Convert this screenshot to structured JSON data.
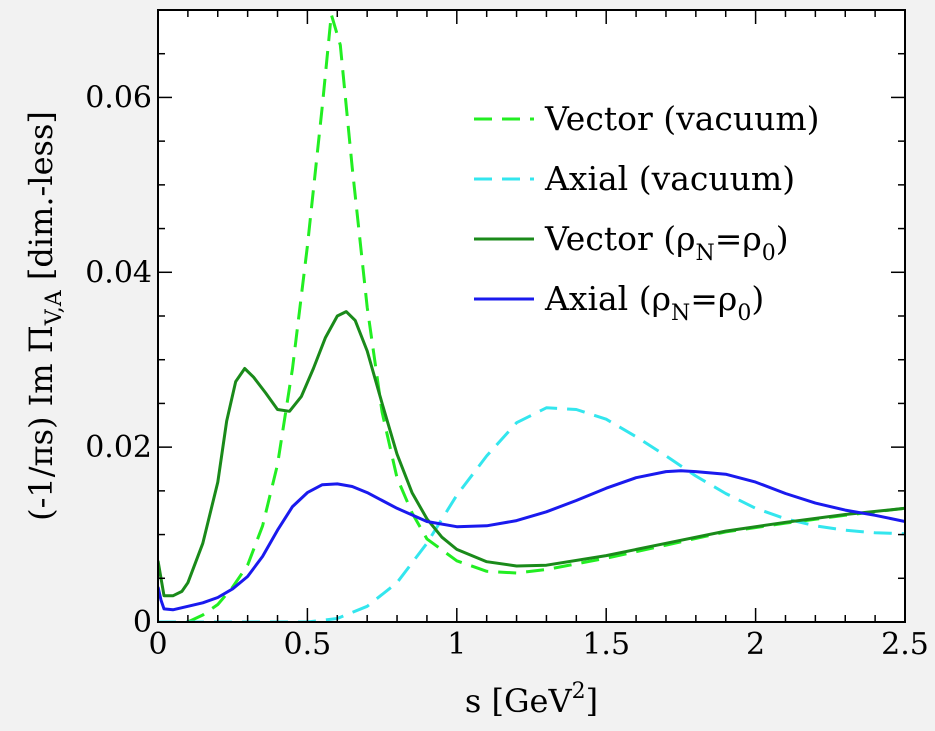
{
  "chart_data": {
    "type": "line",
    "xlabel": {
      "text": "s [GeV",
      "sup": "2",
      "close": "]"
    },
    "ylabel": {
      "text": "(-1/πs) Im Π",
      "sub": "V,A",
      "unit": " [dim.-less]"
    },
    "xlim": [
      0,
      2.5
    ],
    "ylim": [
      0,
      0.07
    ],
    "xticks": [
      {
        "value": 0,
        "label": "0"
      },
      {
        "value": 0.5,
        "label": "0.5"
      },
      {
        "value": 1,
        "label": "1"
      },
      {
        "value": 1.5,
        "label": "1.5"
      },
      {
        "value": 2,
        "label": "2"
      },
      {
        "value": 2.5,
        "label": "2.5"
      }
    ],
    "yticks": [
      {
        "value": 0,
        "label": "0"
      },
      {
        "value": 0.02,
        "label": "0.02"
      },
      {
        "value": 0.04,
        "label": "0.04"
      },
      {
        "value": 0.06,
        "label": "0.06"
      }
    ],
    "grid": false,
    "legend_position": "top-right",
    "series": [
      {
        "key": "vector-vacuum",
        "legend": {
          "text": "Vector (vacuum)"
        },
        "color": "#22ee22",
        "style": "dashed",
        "points": [
          [
            0.1,
            0
          ],
          [
            0.15,
            0.0008
          ],
          [
            0.2,
            0.002
          ],
          [
            0.25,
            0.004
          ],
          [
            0.3,
            0.0065
          ],
          [
            0.35,
            0.011
          ],
          [
            0.4,
            0.018
          ],
          [
            0.45,
            0.029
          ],
          [
            0.5,
            0.043
          ],
          [
            0.55,
            0.059
          ],
          [
            0.58,
            0.0695
          ],
          [
            0.61,
            0.066
          ],
          [
            0.65,
            0.052
          ],
          [
            0.7,
            0.036
          ],
          [
            0.75,
            0.024
          ],
          [
            0.8,
            0.0165
          ],
          [
            0.85,
            0.0125
          ],
          [
            0.9,
            0.0095
          ],
          [
            1.0,
            0.007
          ],
          [
            1.1,
            0.0058
          ],
          [
            1.2,
            0.0056
          ],
          [
            1.3,
            0.006
          ],
          [
            1.5,
            0.0073
          ],
          [
            1.7,
            0.0088
          ],
          [
            1.9,
            0.0103
          ],
          [
            2.1,
            0.0113
          ],
          [
            2.3,
            0.0122
          ],
          [
            2.5,
            0.013
          ]
        ]
      },
      {
        "key": "axial-vacuum",
        "legend": {
          "text": "Axial (vacuum)"
        },
        "color": "#33e6ee",
        "style": "dashed",
        "points": [
          [
            0,
            0
          ],
          [
            0.5,
            0
          ],
          [
            0.6,
            0.0004
          ],
          [
            0.7,
            0.0018
          ],
          [
            0.8,
            0.0045
          ],
          [
            0.9,
            0.009
          ],
          [
            1.0,
            0.0145
          ],
          [
            1.1,
            0.019
          ],
          [
            1.2,
            0.0228
          ],
          [
            1.3,
            0.0245
          ],
          [
            1.4,
            0.0243
          ],
          [
            1.5,
            0.0232
          ],
          [
            1.6,
            0.0212
          ],
          [
            1.7,
            0.019
          ],
          [
            1.8,
            0.0167
          ],
          [
            1.9,
            0.0147
          ],
          [
            2.0,
            0.013
          ],
          [
            2.1,
            0.0118
          ],
          [
            2.2,
            0.011
          ],
          [
            2.3,
            0.0105
          ],
          [
            2.4,
            0.0102
          ],
          [
            2.5,
            0.0101
          ]
        ]
      },
      {
        "key": "vector-medium",
        "legend": {
          "text": "Vector (ρ",
          "sub1": "N",
          "mid": "=ρ",
          "sub2": "0",
          "end": ")"
        },
        "color": "#1a8a1a",
        "style": "solid",
        "points": [
          [
            0,
            0.007
          ],
          [
            0.01,
            0.005
          ],
          [
            0.02,
            0.003
          ],
          [
            0.05,
            0.003
          ],
          [
            0.08,
            0.0035
          ],
          [
            0.1,
            0.0045
          ],
          [
            0.15,
            0.009
          ],
          [
            0.2,
            0.016
          ],
          [
            0.23,
            0.023
          ],
          [
            0.26,
            0.0275
          ],
          [
            0.29,
            0.029
          ],
          [
            0.32,
            0.028
          ],
          [
            0.36,
            0.0262
          ],
          [
            0.4,
            0.0243
          ],
          [
            0.44,
            0.0241
          ],
          [
            0.48,
            0.0258
          ],
          [
            0.52,
            0.029
          ],
          [
            0.56,
            0.0325
          ],
          [
            0.6,
            0.035
          ],
          [
            0.63,
            0.0355
          ],
          [
            0.66,
            0.0345
          ],
          [
            0.7,
            0.031
          ],
          [
            0.75,
            0.025
          ],
          [
            0.8,
            0.0192
          ],
          [
            0.85,
            0.0148
          ],
          [
            0.9,
            0.0118
          ],
          [
            0.95,
            0.0097
          ],
          [
            1.0,
            0.0083
          ],
          [
            1.1,
            0.0069
          ],
          [
            1.2,
            0.0064
          ],
          [
            1.3,
            0.0065
          ],
          [
            1.5,
            0.0076
          ],
          [
            1.7,
            0.009
          ],
          [
            1.9,
            0.0104
          ],
          [
            2.1,
            0.0114
          ],
          [
            2.3,
            0.0123
          ],
          [
            2.5,
            0.013
          ]
        ]
      },
      {
        "key": "axial-medium",
        "legend": {
          "text": "Axial (ρ",
          "sub1": "N",
          "mid": "=ρ",
          "sub2": "0",
          "end": ")"
        },
        "color": "#1a1aee",
        "style": "solid",
        "points": [
          [
            0,
            0.004
          ],
          [
            0.01,
            0.0025
          ],
          [
            0.02,
            0.0015
          ],
          [
            0.05,
            0.0014
          ],
          [
            0.1,
            0.0018
          ],
          [
            0.15,
            0.0022
          ],
          [
            0.2,
            0.0028
          ],
          [
            0.25,
            0.0038
          ],
          [
            0.3,
            0.0052
          ],
          [
            0.35,
            0.0075
          ],
          [
            0.4,
            0.0105
          ],
          [
            0.45,
            0.0132
          ],
          [
            0.5,
            0.0148
          ],
          [
            0.55,
            0.0157
          ],
          [
            0.6,
            0.0158
          ],
          [
            0.65,
            0.0155
          ],
          [
            0.7,
            0.0148
          ],
          [
            0.8,
            0.013
          ],
          [
            0.9,
            0.0115
          ],
          [
            1.0,
            0.0109
          ],
          [
            1.1,
            0.011
          ],
          [
            1.2,
            0.0116
          ],
          [
            1.3,
            0.0126
          ],
          [
            1.4,
            0.0139
          ],
          [
            1.5,
            0.0153
          ],
          [
            1.6,
            0.0165
          ],
          [
            1.7,
            0.0172
          ],
          [
            1.75,
            0.0173
          ],
          [
            1.8,
            0.0172
          ],
          [
            1.9,
            0.0169
          ],
          [
            2.0,
            0.016
          ],
          [
            2.1,
            0.0147
          ],
          [
            2.2,
            0.0136
          ],
          [
            2.3,
            0.0128
          ],
          [
            2.4,
            0.0122
          ],
          [
            2.5,
            0.0115
          ]
        ]
      }
    ]
  }
}
